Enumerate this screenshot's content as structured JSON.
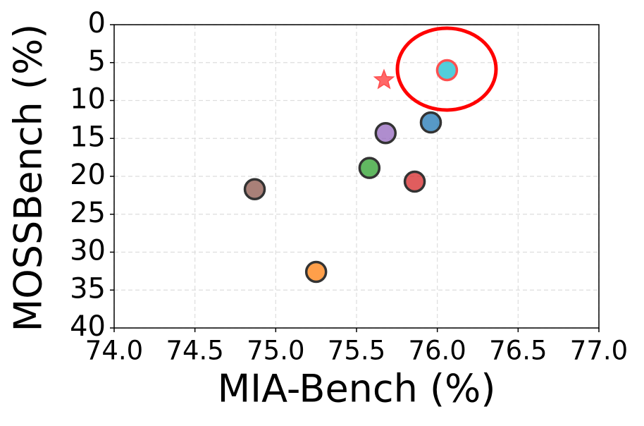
{
  "chart_data": {
    "type": "scatter",
    "xlabel": "MIA-Bench (%)",
    "ylabel": "MOSSBench (%)",
    "x": [
      76.06,
      75.67,
      75.96,
      75.68,
      75.58,
      75.86,
      74.87,
      75.25
    ],
    "values": [
      6.0,
      7.3,
      12.9,
      14.3,
      18.9,
      20.7,
      21.7,
      32.6
    ],
    "colors": [
      "#17becf",
      "#ff4d4d",
      "#1f77b4",
      "#9467bd",
      "#2ca02c",
      "#d62728",
      "#8c564b",
      "#ff7f0e"
    ],
    "markers": [
      "circle",
      "star",
      "circle",
      "circle",
      "circle",
      "circle",
      "circle",
      "circle"
    ],
    "xlim": [
      74,
      77
    ],
    "xticks": [
      {
        "value": 74,
        "label": "74.0"
      },
      74.5,
      {
        "value": 75,
        "label": "75.0"
      },
      75.5,
      {
        "value": 76,
        "label": "76.0"
      },
      76.5,
      {
        "value": 77,
        "label": "77.0"
      }
    ],
    "ylim": [
      0,
      40
    ],
    "y_inverted": true,
    "yticks": [
      0,
      5,
      10,
      15,
      20,
      25,
      30,
      35,
      40
    ],
    "grid": true
  }
}
